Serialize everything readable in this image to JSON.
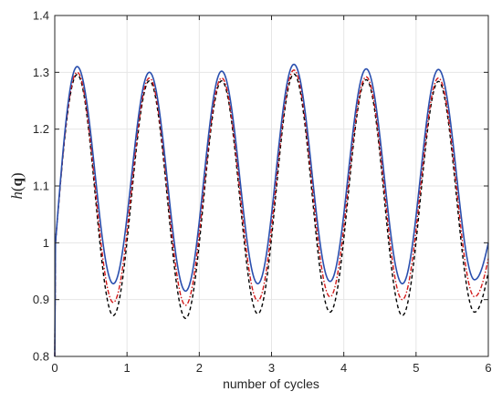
{
  "chart_data": {
    "type": "line",
    "xlabel": "number of cycles",
    "ylabel": {
      "italic": "h",
      "open": "(",
      "bold": "q",
      "close": ")"
    },
    "xlim": [
      0,
      6
    ],
    "ylim": [
      0.8,
      1.4
    ],
    "xticks": [
      "0",
      "1",
      "2",
      "3",
      "4",
      "5",
      "6"
    ],
    "yticks": [
      "0.8",
      "0.9",
      "1",
      "1.1",
      "1.2",
      "1.3",
      "1.4"
    ],
    "grid": true,
    "series": [
      {
        "color": "#2a4fae",
        "style": "solid",
        "peaks": [
          1.31,
          1.3,
          1.302,
          1.314,
          1.306,
          1.305
        ],
        "troughs": [
          0.928,
          0.915,
          0.928,
          0.932,
          0.928,
          0.935
        ]
      },
      {
        "color": "#d21919",
        "style": "dashdot",
        "peaks": [
          1.3,
          1.29,
          1.29,
          1.304,
          1.292,
          1.29
        ],
        "troughs": [
          0.895,
          0.89,
          0.898,
          0.905,
          0.9,
          0.905
        ]
      },
      {
        "color": "#000000",
        "style": "dashed",
        "peaks": [
          1.296,
          1.285,
          1.285,
          1.297,
          1.287,
          1.284
        ],
        "troughs": [
          0.872,
          0.867,
          0.875,
          0.878,
          0.872,
          0.878
        ]
      }
    ]
  }
}
